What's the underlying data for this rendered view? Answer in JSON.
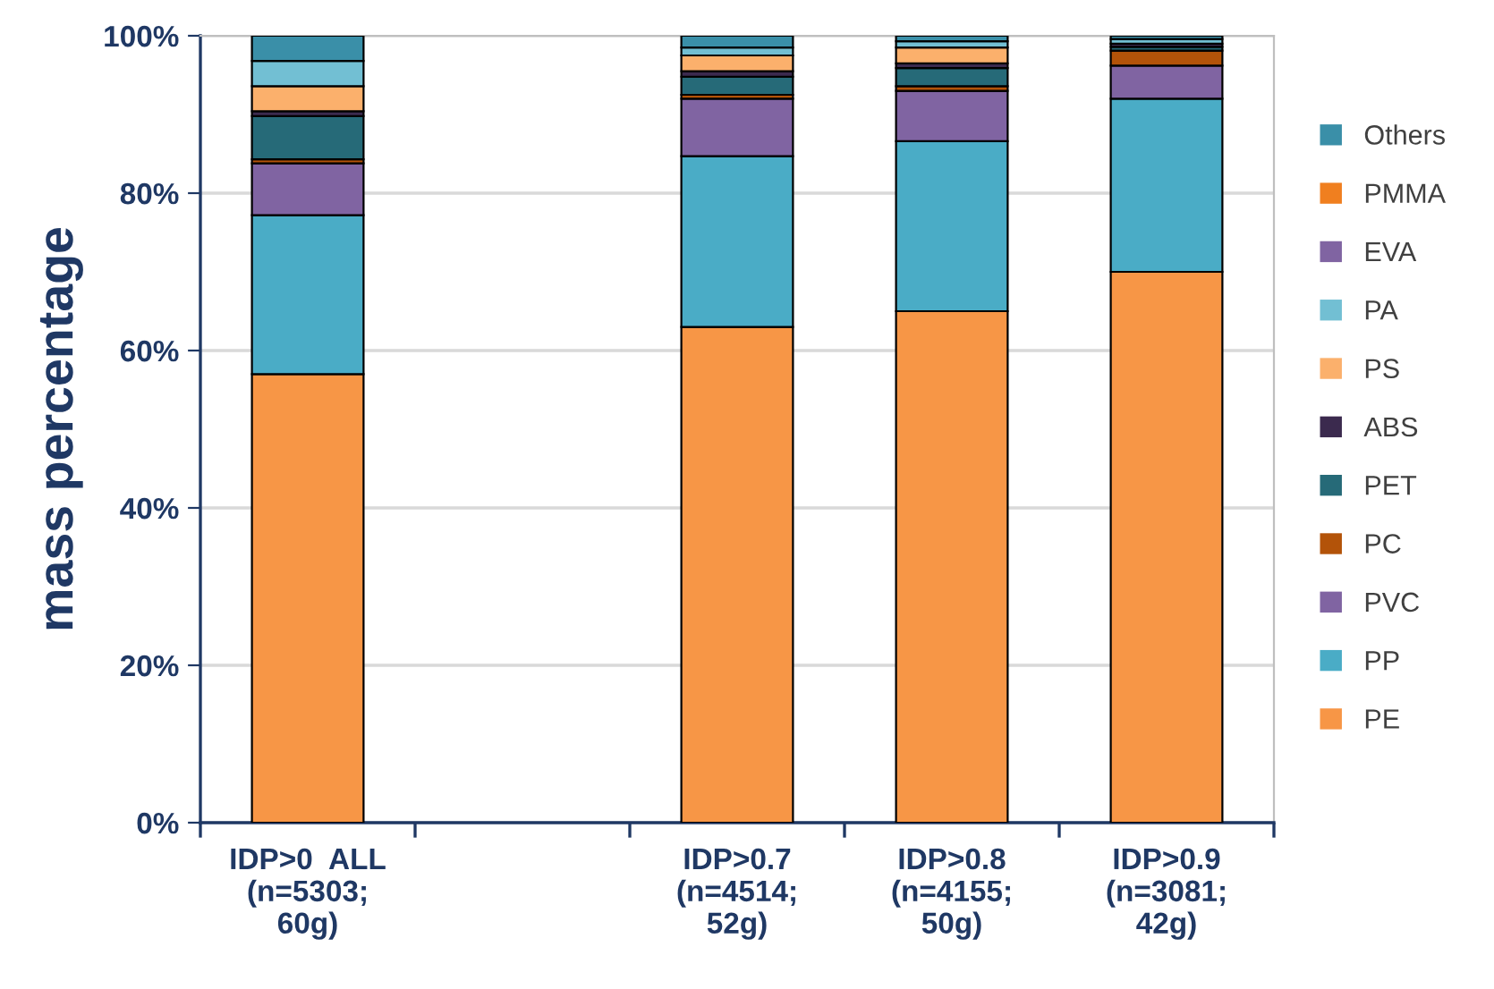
{
  "chart_data": {
    "type": "bar",
    "stacked": true,
    "ylabel": "mass percentage",
    "categories": [
      "IDP>0  ALL\n(n=5303;\n60g)",
      null,
      "IDP>0.7\n(n=4514;\n52g)",
      "IDP>0.8\n(n=4155;\n50g)",
      "IDP>0.9\n(n=3081;\n42g)"
    ],
    "series": [
      {
        "name": "PE",
        "color": "#f79646",
        "values": [
          57,
          null,
          63,
          65,
          70
        ]
      },
      {
        "name": "PP",
        "color": "#4aacc6",
        "values": [
          20.2,
          null,
          21.7,
          21.6,
          22
        ]
      },
      {
        "name": "PVC",
        "color": "#8064a2",
        "values": [
          6.6,
          null,
          7.3,
          6.4,
          4.2
        ]
      },
      {
        "name": "PC",
        "color": "#b35309",
        "values": [
          0.5,
          null,
          0.5,
          0.6,
          1.9
        ]
      },
      {
        "name": "PET",
        "color": "#266a78",
        "values": [
          5.5,
          null,
          2.3,
          2.3,
          0.5
        ]
      },
      {
        "name": "ABS",
        "color": "#3b2a4e",
        "values": [
          0.6,
          null,
          0.7,
          0.6,
          0.4
        ]
      },
      {
        "name": "PS",
        "color": "#fbb06c",
        "values": [
          3.2,
          null,
          2.0,
          2.0,
          null
        ]
      },
      {
        "name": "PA",
        "color": "#72bfd3",
        "values": [
          3.2,
          null,
          1.0,
          0.8,
          0.6
        ]
      },
      {
        "name": "EVA",
        "color": "#8064a2",
        "values": [
          null,
          null,
          null,
          null,
          null
        ]
      },
      {
        "name": "PMMA",
        "color": "#f07f1f",
        "values": [
          null,
          null,
          null,
          null,
          null
        ]
      },
      {
        "name": "Others",
        "color": "#3a8fa8",
        "values": [
          3.2,
          null,
          1.5,
          0.7,
          0.4
        ]
      }
    ],
    "ylim": [
      0,
      100
    ],
    "yticks": [
      {
        "value": 0,
        "label": "0%"
      },
      {
        "value": 20,
        "label": "20%"
      },
      {
        "value": 40,
        "label": "40%"
      },
      {
        "value": 60,
        "label": "60%"
      },
      {
        "value": 80,
        "label": "80%"
      },
      {
        "value": 100,
        "label": "100%"
      }
    ],
    "grid": "y",
    "legend": "right"
  }
}
